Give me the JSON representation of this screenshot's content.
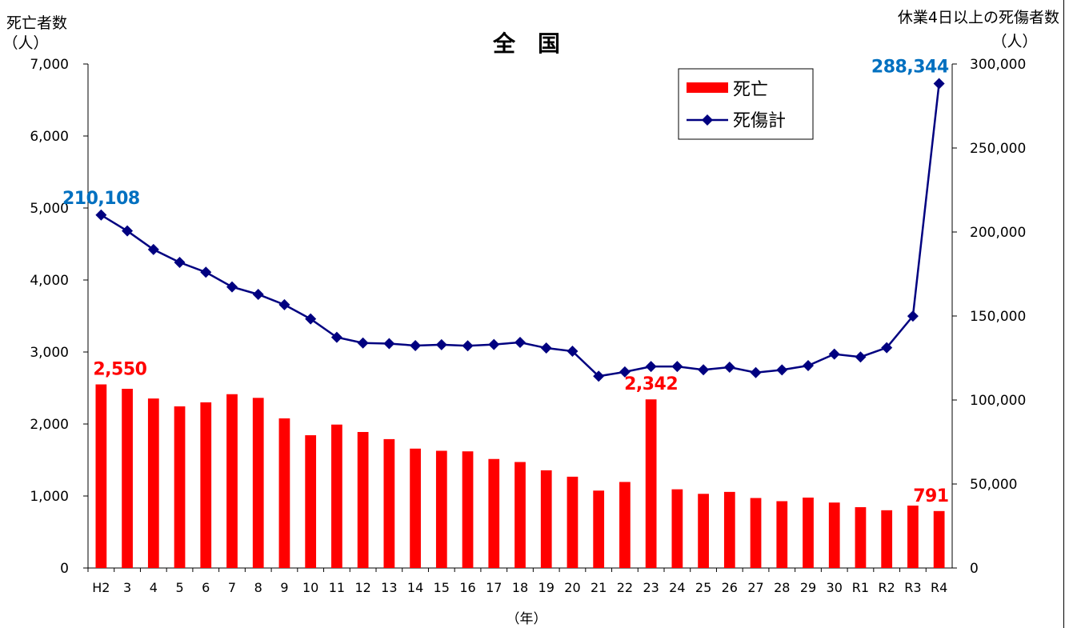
{
  "chart_data": {
    "type": "bar",
    "title": "全　国",
    "xlabel": "（年）",
    "ylabel_left": "死亡者数",
    "ylabel_left_unit": "（人）",
    "ylabel_right": "休業4日以上の死傷者数",
    "ylabel_right_unit": "（人）",
    "categories": [
      "H2",
      "3",
      "4",
      "5",
      "6",
      "7",
      "8",
      "9",
      "10",
      "11",
      "12",
      "13",
      "14",
      "15",
      "16",
      "17",
      "18",
      "19",
      "20",
      "21",
      "22",
      "23",
      "24",
      "25",
      "26",
      "27",
      "28",
      "29",
      "30",
      "R1",
      "R2",
      "R3",
      "R4"
    ],
    "ylim_left": [
      0,
      7000
    ],
    "ylim_right": [
      0,
      300000
    ],
    "left_ticks": [
      "0",
      "1,000",
      "2,000",
      "3,000",
      "4,000",
      "5,000",
      "6,000",
      "7,000"
    ],
    "right_ticks": [
      "0",
      "50,000",
      "100,000",
      "150,000",
      "200,000",
      "250,000",
      "300,000"
    ],
    "series": [
      {
        "name": "死亡",
        "type": "bar",
        "axis": "left",
        "color": "#ff0000",
        "values": [
          2550,
          2489,
          2354,
          2245,
          2301,
          2414,
          2363,
          2078,
          1844,
          1992,
          1889,
          1790,
          1658,
          1628,
          1620,
          1514,
          1472,
          1357,
          1268,
          1075,
          1195,
          2342,
          1093,
          1030,
          1057,
          972,
          928,
          978,
          909,
          845,
          802,
          867,
          791
        ]
      },
      {
        "name": "死傷計",
        "type": "line",
        "axis": "right",
        "color": "#000080",
        "values": [
          210108,
          200633,
          189589,
          181900,
          176047,
          167316,
          162862,
          156726,
          148248,
          137316,
          133948,
          133598,
          132405,
          132936,
          132248,
          133050,
          134298,
          130929,
          129026,
          114152,
          116733,
          119948,
          119958,
          117958,
          119535,
          116311,
          117910,
          120460,
          127329,
          125611,
          131156,
          149918,
          288344
        ]
      }
    ],
    "annotations": [
      {
        "text": "2,550",
        "series": 0,
        "index": 0,
        "color": "#ff0000"
      },
      {
        "text": "2,342",
        "series": 0,
        "index": 21,
        "color": "#ff0000"
      },
      {
        "text": "791",
        "series": 0,
        "index": 32,
        "color": "#ff0000"
      },
      {
        "text": "210,108",
        "series": 1,
        "index": 0,
        "color": "#0070c0"
      },
      {
        "text": "288,344",
        "series": 1,
        "index": 32,
        "color": "#0070c0"
      }
    ],
    "legend": {
      "position": "top-right",
      "entries": [
        "死亡",
        "死傷計"
      ]
    },
    "grid": false
  }
}
